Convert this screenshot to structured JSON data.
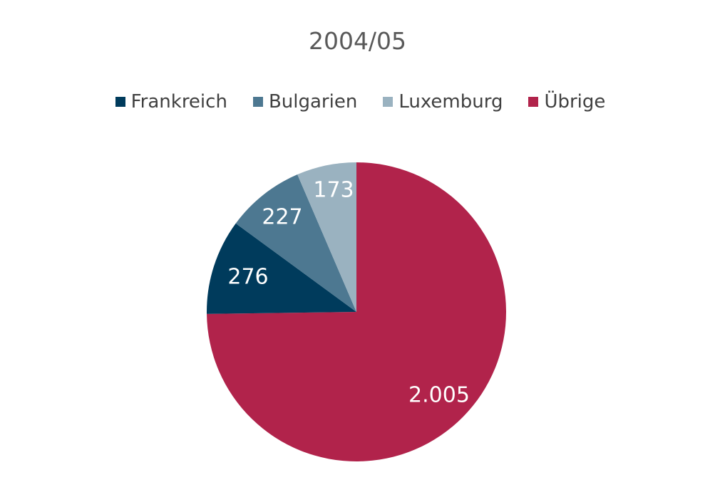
{
  "chart_data": {
    "type": "pie",
    "title": "2004/05",
    "categories": [
      "Frankreich",
      "Bulgarien",
      "Luxemburg",
      "Übrige"
    ],
    "values": [
      276,
      227,
      173,
      2005
    ],
    "data_labels": [
      "276",
      "227",
      "173",
      "2.005"
    ],
    "colors": [
      "#003b5c",
      "#4d7891",
      "#9ab2c0",
      "#b1234b"
    ],
    "legend_position": "top",
    "start_angle": "12 o'clock",
    "direction": "counter-clockwise from Übrige"
  }
}
